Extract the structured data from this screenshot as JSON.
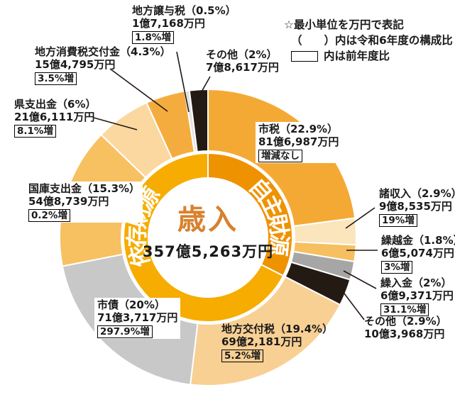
{
  "legend": {
    "note_unit": "☆最小単位を万円で表記",
    "paren_symbol": "（　　）",
    "note_paren": "内は令和6年度の構成比",
    "note_box": "内は前年度比"
  },
  "center": {
    "title": "歳入",
    "total": "357億5,263万円"
  },
  "colors": {
    "center_title": "#D8812D",
    "leader_line": "#221815",
    "text": "#1A1A1A"
  },
  "chart_data": {
    "type": "donut",
    "title": "歳入",
    "total": "357億5,263万円",
    "unit_note": "最小単位を万円で表記",
    "paren_note": "（　）内は令和6年度の構成比",
    "box_note": "枠内は前年度比",
    "inner_groups": [
      {
        "name": "自主財源",
        "pct": 32.5,
        "color": "#EF9200"
      },
      {
        "name": "依存財源",
        "pct": 67.5,
        "color": "#F6AC00"
      }
    ],
    "segments": [
      {
        "name": "市税",
        "pct": 22.9,
        "pct_label": "22.9%",
        "amount": "81億6,987万円",
        "yoy": "増減なし",
        "color": "#F5A935",
        "group": "自主財源"
      },
      {
        "name": "諸収入",
        "pct": 2.9,
        "pct_label": "2.9%",
        "amount": "9億8,535万円",
        "yoy": "19%増",
        "color": "#FAE5BC",
        "group": "自主財源"
      },
      {
        "name": "繰越金",
        "pct": 1.8,
        "pct_label": "1.8%",
        "amount": "6億5,074万円",
        "yoy": "3%増",
        "color": "#F6BF5F",
        "group": "自主財源"
      },
      {
        "name": "繰入金",
        "pct": 2,
        "pct_label": "2%",
        "amount": "6億9,371万円",
        "yoy": "31.1%増",
        "color": "#A6A6A7",
        "group": "自主財源"
      },
      {
        "name": "その他",
        "pct": 2.9,
        "pct_label": "2.9%",
        "amount": "10億3,968万円",
        "yoy": null,
        "color": "#241A14",
        "group": "自主財源"
      },
      {
        "name": "地方交付税",
        "pct": 19.4,
        "pct_label": "19.4%",
        "amount": "69億2,181万円",
        "yoy": "5.2%増",
        "color": "#F8D094",
        "group": "依存財源"
      },
      {
        "name": "市債",
        "pct": 20,
        "pct_label": "20%",
        "amount": "71億3,717万円",
        "yoy": "297.9%増",
        "color": "#C8C8C9",
        "group": "依存財源"
      },
      {
        "name": "国庫支出金",
        "pct": 15.3,
        "pct_label": "15.3%",
        "amount": "54億8,739万円",
        "yoy": "0.2%増",
        "color": "#F7C061",
        "group": "依存財源"
      },
      {
        "name": "県支出金",
        "pct": 6,
        "pct_label": "6%",
        "amount": "21億6,111万円",
        "yoy": "8.1%増",
        "color": "#FAD8A0",
        "group": "依存財源"
      },
      {
        "name": "地方消費税交付金",
        "pct": 4.3,
        "pct_label": "4.3%",
        "amount": "15億4,795万円",
        "yoy": "3.5%増",
        "color": "#F5AC3E",
        "group": "依存財源"
      },
      {
        "name": "地方譲与税",
        "pct": 0.5,
        "pct_label": "0.5%",
        "amount": "1億7,168万円",
        "yoy": "1.8%増",
        "color": "#E2E2E2",
        "group": "依存財源"
      },
      {
        "name": "その他",
        "pct": 2,
        "pct_label": "2%",
        "amount": "7億8,617万円",
        "yoy": null,
        "color": "#241A14",
        "group": "依存財源"
      }
    ]
  }
}
